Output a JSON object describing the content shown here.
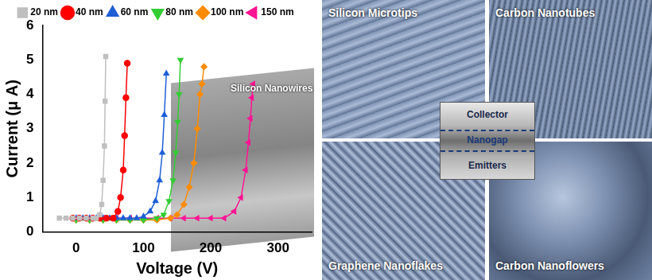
{
  "chart_data": {
    "type": "line",
    "x_label": "Voltage (V)",
    "y_label": "Current (μ A)",
    "xlim": [
      -50,
      350
    ],
    "xticks": [
      0,
      100,
      200,
      300
    ],
    "ylim": [
      0,
      6
    ],
    "yticks": [
      0,
      1,
      2,
      3,
      4,
      5,
      6
    ],
    "grid": false,
    "legend": "top",
    "annotations": [
      {
        "text": "Silicon Nanowires"
      }
    ],
    "series": [
      {
        "name": "20 nm",
        "color": "#bfbfbf",
        "marker": "square",
        "x": [
          -25,
          -15,
          -5,
          5,
          15,
          25,
          30,
          35,
          38,
          40,
          42,
          43,
          44
        ],
        "values": [
          0.4,
          0.4,
          0.4,
          0.4,
          0.4,
          0.4,
          0.4,
          0.5,
          0.8,
          1.5,
          2.5,
          3.8,
          5.1
        ]
      },
      {
        "name": "40 nm",
        "color": "#ff0000",
        "marker": "circle",
        "x": [
          -5,
          5,
          15,
          25,
          35,
          45,
          55,
          62,
          66,
          70,
          72,
          74,
          76
        ],
        "values": [
          0.4,
          0.4,
          0.4,
          0.4,
          0.4,
          0.4,
          0.4,
          0.6,
          1.0,
          1.8,
          2.8,
          3.9,
          4.9
        ]
      },
      {
        "name": "60 nm",
        "color": "#1f5fd6",
        "marker": "triangle",
        "x": [
          0,
          10,
          20,
          30,
          40,
          50,
          60,
          70,
          80,
          90,
          100,
          110,
          118,
          124,
          128,
          131,
          134
        ],
        "values": [
          0.4,
          0.4,
          0.4,
          0.4,
          0.4,
          0.4,
          0.4,
          0.4,
          0.4,
          0.4,
          0.45,
          0.6,
          0.9,
          1.5,
          2.3,
          3.4,
          4.6
        ]
      },
      {
        "name": "80 nm",
        "color": "#33cc33",
        "marker": "triangle_down",
        "x": [
          0,
          20,
          40,
          60,
          80,
          100,
          120,
          130,
          138,
          144,
          148,
          151,
          153,
          155
        ],
        "values": [
          0.35,
          0.35,
          0.35,
          0.35,
          0.35,
          0.35,
          0.4,
          0.5,
          0.9,
          1.5,
          2.3,
          3.2,
          4.0,
          5.0
        ]
      },
      {
        "name": "100 nm",
        "color": "#ff8c00",
        "marker": "diamond",
        "x": [
          0,
          20,
          40,
          60,
          80,
          100,
          120,
          140,
          150,
          160,
          168,
          175,
          180,
          184,
          187,
          190
        ],
        "values": [
          0.35,
          0.35,
          0.35,
          0.35,
          0.35,
          0.35,
          0.35,
          0.4,
          0.5,
          0.8,
          1.3,
          2.0,
          3.0,
          4.0,
          4.3,
          4.8
        ]
      },
      {
        "name": "150 nm",
        "color": "#ff1493",
        "marker": "triangle_left",
        "x": [
          0,
          20,
          40,
          60,
          80,
          100,
          120,
          140,
          160,
          180,
          200,
          220,
          235,
          245,
          252,
          256,
          259,
          261,
          263
        ],
        "values": [
          0.4,
          0.4,
          0.4,
          0.4,
          0.4,
          0.4,
          0.4,
          0.4,
          0.4,
          0.4,
          0.4,
          0.4,
          0.6,
          1.0,
          1.8,
          2.6,
          3.3,
          3.9,
          4.3
        ]
      }
    ]
  },
  "panels": {
    "images": [
      {
        "label": "Silicon Microtips"
      },
      {
        "label": "Carbon Nanotubes"
      },
      {
        "label": "Graphene Nanoflakes"
      },
      {
        "label": "Carbon Nanoflowers"
      }
    ],
    "schematic": {
      "top": "Collector",
      "middle": "Nanogap",
      "bottom": "Emitters"
    }
  }
}
